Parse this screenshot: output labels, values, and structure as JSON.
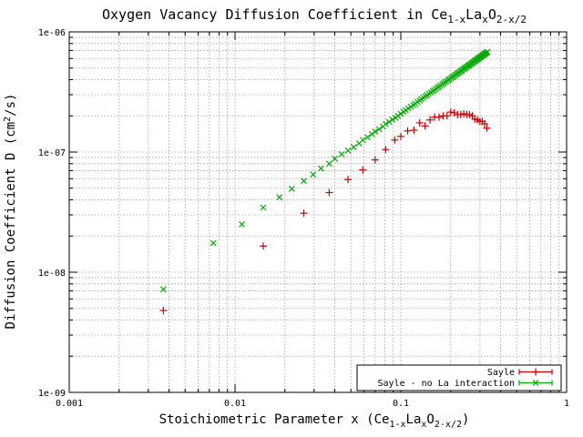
{
  "chart_data": {
    "type": "scatter",
    "title_parts": {
      "main": "Oxygen Vacancy Diffusion Coefficient in Ce",
      "sub1": "1-x",
      "mid1": "La",
      "sub2": "x",
      "mid2": "O",
      "sub3": "2-x/2"
    },
    "xlabel_parts": {
      "main": "Stoichiometric Parameter x   (Ce",
      "sub1": "1-x",
      "mid1": "La",
      "sub2": "x",
      "mid2": "O",
      "sub3": "2-x/2",
      "end": ")"
    },
    "ylabel_parts": {
      "main": "Diffusion Coefficient D (cm",
      "sup": "2",
      "end": "/s)"
    },
    "xscale": "log",
    "yscale": "log",
    "xlim": [
      0.001,
      1
    ],
    "ylim": [
      1e-09,
      1e-06
    ],
    "x_ticks": [
      {
        "value": 0.001,
        "label": "0.001"
      },
      {
        "value": 0.01,
        "label": "0.01"
      },
      {
        "value": 0.1,
        "label": "0.1"
      },
      {
        "value": 1,
        "label": "1"
      }
    ],
    "y_ticks": [
      {
        "value": 1e-09,
        "label": "1e-09"
      },
      {
        "value": 1e-08,
        "label": "1e-08"
      },
      {
        "value": 1e-07,
        "label": "1e-07"
      },
      {
        "value": 1e-06,
        "label": "1e-06"
      }
    ],
    "grid": true,
    "legend_position": "bottom-right",
    "series": [
      {
        "name": "Sayle",
        "color": "#cc0000",
        "marker": "plus",
        "x": [
          0.0037,
          0.0148,
          0.026,
          0.037,
          0.048,
          0.059,
          0.07,
          0.081,
          0.092,
          0.1,
          0.11,
          0.12,
          0.13,
          0.14,
          0.15,
          0.16,
          0.17,
          0.18,
          0.19,
          0.2,
          0.21,
          0.22,
          0.23,
          0.24,
          0.25,
          0.26,
          0.27,
          0.28,
          0.29,
          0.3,
          0.31,
          0.32,
          0.33
        ],
        "y": [
          4.8e-09,
          1.65e-08,
          3.1e-08,
          4.6e-08,
          5.9e-08,
          7.1e-08,
          8.6e-08,
          1.05e-07,
          1.26e-07,
          1.35e-07,
          1.5e-07,
          1.52e-07,
          1.75e-07,
          1.65e-07,
          1.85e-07,
          1.95e-07,
          1.95e-07,
          2e-07,
          2e-07,
          2.15e-07,
          2.12e-07,
          2.05e-07,
          2.05e-07,
          2.08e-07,
          2.05e-07,
          2.05e-07,
          2e-07,
          1.88e-07,
          1.85e-07,
          1.8e-07,
          1.8e-07,
          1.72e-07,
          1.58e-07
        ]
      },
      {
        "name": "Sayle - no La interaction",
        "color": "#00aa00",
        "marker": "cross",
        "x": [
          0.0037,
          0.0074,
          0.011,
          0.0148,
          0.0185,
          0.022,
          0.026,
          0.0296,
          0.033,
          0.037,
          0.04,
          0.044,
          0.048,
          0.052,
          0.056,
          0.059,
          0.063,
          0.067,
          0.07,
          0.074,
          0.078,
          0.081,
          0.085,
          0.089,
          0.093,
          0.096,
          0.1,
          0.104,
          0.107,
          0.111,
          0.115,
          0.119,
          0.122,
          0.126,
          0.13,
          0.133,
          0.137,
          0.141,
          0.144,
          0.148,
          0.152,
          0.156,
          0.159,
          0.163,
          0.167,
          0.17,
          0.174,
          0.178,
          0.181,
          0.185,
          0.189,
          0.193,
          0.196,
          0.2,
          0.204,
          0.207,
          0.211,
          0.215,
          0.219,
          0.222,
          0.226,
          0.23,
          0.233,
          0.237,
          0.241,
          0.244,
          0.248,
          0.252,
          0.256,
          0.259,
          0.263,
          0.267,
          0.27,
          0.274,
          0.278,
          0.281,
          0.285,
          0.289,
          0.293,
          0.296,
          0.3,
          0.304,
          0.307,
          0.311,
          0.315,
          0.319,
          0.322,
          0.326,
          0.33,
          0.333
        ],
        "y": [
          7.2e-09,
          1.75e-08,
          2.5e-08,
          3.45e-08,
          4.2e-08,
          4.95e-08,
          5.75e-08,
          6.5e-08,
          7.3e-08,
          8e-08,
          8.8e-08,
          9.6e-08,
          1.03e-07,
          1.1e-07,
          1.18e-07,
          1.26e-07,
          1.33e-07,
          1.41e-07,
          1.48e-07,
          1.55e-07,
          1.63e-07,
          1.71e-07,
          1.78e-07,
          1.86e-07,
          1.93e-07,
          2e-07,
          2.08e-07,
          2.16e-07,
          2.23e-07,
          2.31e-07,
          2.38e-07,
          2.46e-07,
          2.53e-07,
          2.61e-07,
          2.68e-07,
          2.76e-07,
          2.83e-07,
          2.91e-07,
          2.98e-07,
          3.06e-07,
          3.13e-07,
          3.21e-07,
          3.28e-07,
          3.36e-07,
          3.43e-07,
          3.51e-07,
          3.58e-07,
          3.66e-07,
          3.73e-07,
          3.81e-07,
          3.88e-07,
          3.96e-07,
          4.03e-07,
          4.11e-07,
          4.18e-07,
          4.26e-07,
          4.33e-07,
          4.41e-07,
          4.48e-07,
          4.56e-07,
          4.63e-07,
          4.71e-07,
          4.78e-07,
          4.86e-07,
          4.93e-07,
          5.01e-07,
          5.08e-07,
          5.16e-07,
          5.23e-07,
          5.31e-07,
          5.38e-07,
          5.46e-07,
          5.53e-07,
          5.61e-07,
          5.68e-07,
          5.76e-07,
          5.83e-07,
          5.91e-07,
          5.98e-07,
          6.06e-07,
          6.13e-07,
          6.21e-07,
          6.28e-07,
          6.36e-07,
          6.43e-07,
          6.51e-07,
          6.58e-07,
          6.66e-07,
          6.73e-07,
          6.81e-07
        ]
      }
    ]
  }
}
